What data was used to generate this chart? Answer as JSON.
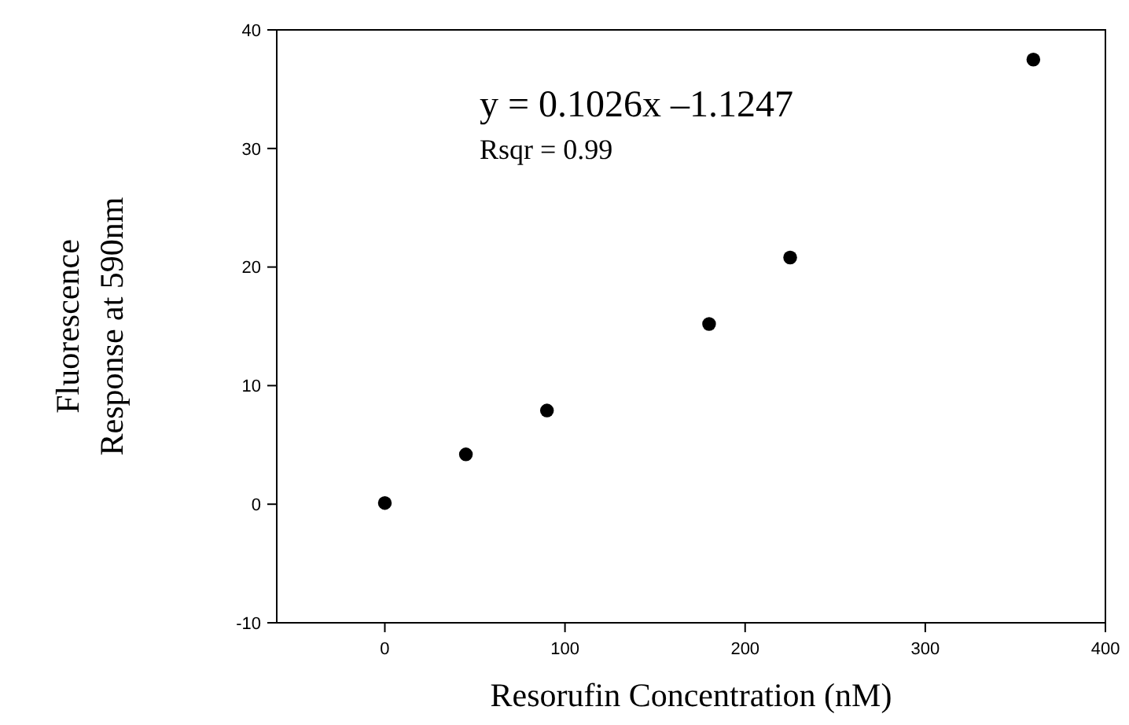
{
  "chart_data": {
    "type": "scatter",
    "xlabel": "Resorufin Concentration (nM)",
    "ylabel": "Fluorescence\nResponse at 590nm",
    "x": [
      0,
      45,
      90,
      180,
      225,
      360
    ],
    "series": [
      {
        "color": "#000000",
        "values": [
          0.1,
          4.2,
          7.9,
          15.2,
          20.8,
          37.5
        ]
      }
    ],
    "xlim": [
      -60,
      400
    ],
    "xticks": [
      0,
      100,
      200,
      300,
      400
    ],
    "ylim": [
      -10,
      40
    ],
    "yticks": [
      -10,
      0,
      10,
      20,
      30,
      40
    ],
    "marker": "circle",
    "grid": false,
    "annotations": [
      "y = 0.1026x –1.1247",
      "Rsqr = 0.99"
    ]
  }
}
